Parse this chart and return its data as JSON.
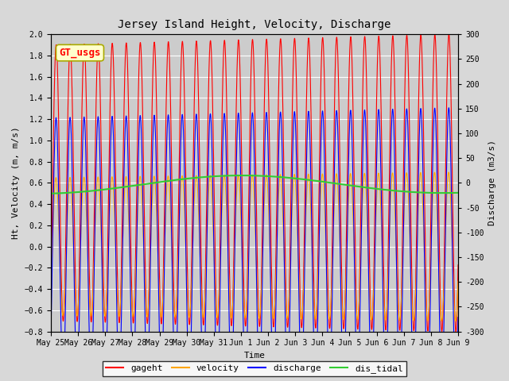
{
  "title": "Jersey Island Height, Velocity, Discharge",
  "xlabel": "Time",
  "ylabel_left": "Ht, Velocity (m, m/s)",
  "ylabel_right": "Discharge (m3/s)",
  "ylim_left": [
    -0.8,
    2.0
  ],
  "ylim_right": [
    -300,
    300
  ],
  "xtick_labels": [
    "May 25",
    "May 26",
    "May 27",
    "May 28",
    "May 29",
    "May 30",
    "May 31",
    "Jun 1",
    "Jun 2",
    "Jun 3",
    "Jun 4",
    "Jun 5",
    "Jun 6",
    "Jun 7",
    "Jun 8",
    "Jun 9"
  ],
  "legend_labels": [
    "gageht",
    "velocity",
    "discharge",
    "dis_tidal"
  ],
  "legend_colors": [
    "red",
    "orange",
    "blue",
    "limegreen"
  ],
  "annotation_text": "GT_usgs",
  "annotation_color": "red",
  "annotation_bg": "#ffffcc",
  "annotation_border": "#aaaa00",
  "fig_bg_color": "#d8d8d8",
  "plot_bg_color": "#cccccc",
  "grid_color": "white",
  "yticks_left": [
    -0.8,
    -0.6,
    -0.4,
    -0.2,
    0.0,
    0.2,
    0.4,
    0.6,
    0.8,
    1.0,
    1.2,
    1.4,
    1.6,
    1.8,
    2.0
  ],
  "yticks_right": [
    -300,
    -250,
    -200,
    -150,
    -100,
    -50,
    0,
    50,
    100,
    150,
    200,
    250,
    300
  ],
  "title_fontsize": 10,
  "label_fontsize": 8,
  "tick_fontsize": 7,
  "legend_fontsize": 8
}
